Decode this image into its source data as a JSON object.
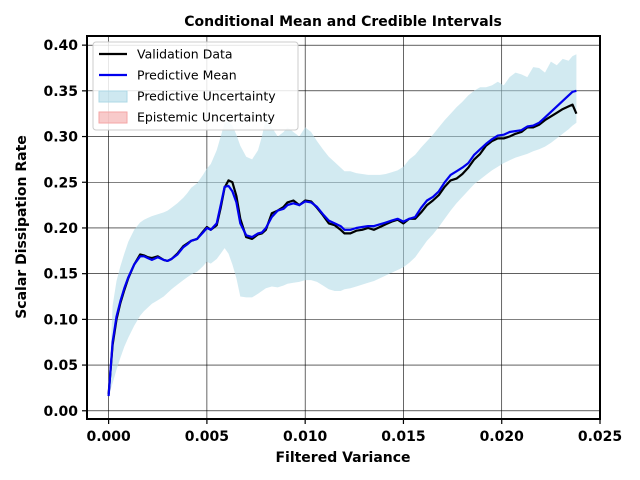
{
  "chart_data": {
    "type": "line",
    "title": "Conditional Mean and Credible Intervals",
    "xlabel": "Filtered Variance",
    "ylabel": "Scalar Dissipation Rate",
    "xlim": [
      -0.0011,
      0.025
    ],
    "ylim": [
      -0.009,
      0.41
    ],
    "xticks": [
      "0.000",
      "0.005",
      "0.010",
      "0.015",
      "0.020",
      "0.025"
    ],
    "yticks": [
      "0.00",
      "0.05",
      "0.10",
      "0.15",
      "0.20",
      "0.25",
      "0.30",
      "0.35",
      "0.40"
    ],
    "xtick_values": [
      0.0,
      0.005,
      0.01,
      0.015,
      0.02,
      0.025
    ],
    "ytick_values": [
      0.0,
      0.05,
      0.1,
      0.15,
      0.2,
      0.25,
      0.3,
      0.35,
      0.4
    ],
    "grid": true,
    "legend_position": "top-left",
    "x": [
      0.0,
      0.0002,
      0.0004,
      0.0006,
      0.0008,
      0.001,
      0.0013,
      0.0016,
      0.0018,
      0.002,
      0.0022,
      0.0025,
      0.0028,
      0.003,
      0.0032,
      0.0035,
      0.0038,
      0.004,
      0.0042,
      0.0045,
      0.0048,
      0.005,
      0.0052,
      0.0055,
      0.0057,
      0.0059,
      0.0061,
      0.0063,
      0.0065,
      0.0067,
      0.007,
      0.0073,
      0.0076,
      0.0078,
      0.008,
      0.0083,
      0.0086,
      0.0089,
      0.0091,
      0.0094,
      0.0097,
      0.01,
      0.0103,
      0.0106,
      0.0109,
      0.0112,
      0.0115,
      0.0118,
      0.012,
      0.0123,
      0.0126,
      0.0129,
      0.0132,
      0.0135,
      0.0138,
      0.0141,
      0.0144,
      0.0147,
      0.015,
      0.0153,
      0.0156,
      0.0159,
      0.0162,
      0.0165,
      0.0168,
      0.0171,
      0.0174,
      0.0177,
      0.018,
      0.0183,
      0.0186,
      0.0189,
      0.0192,
      0.0195,
      0.0198,
      0.0201,
      0.0204,
      0.0207,
      0.021,
      0.0213,
      0.0216,
      0.0219,
      0.0222,
      0.0225,
      0.0228,
      0.0231,
      0.0234,
      0.0236,
      0.0238
    ],
    "series": [
      {
        "name": "Validation Data",
        "color": "#000000",
        "values": [
          0.018,
          0.072,
          0.1,
          0.118,
          0.132,
          0.145,
          0.16,
          0.171,
          0.17,
          0.168,
          0.167,
          0.169,
          0.165,
          0.164,
          0.166,
          0.172,
          0.18,
          0.183,
          0.186,
          0.188,
          0.196,
          0.201,
          0.198,
          0.203,
          0.222,
          0.244,
          0.252,
          0.25,
          0.235,
          0.21,
          0.19,
          0.188,
          0.193,
          0.194,
          0.198,
          0.216,
          0.219,
          0.223,
          0.228,
          0.23,
          0.225,
          0.23,
          0.229,
          0.222,
          0.214,
          0.205,
          0.203,
          0.198,
          0.194,
          0.194,
          0.197,
          0.198,
          0.2,
          0.198,
          0.201,
          0.204,
          0.207,
          0.209,
          0.205,
          0.21,
          0.21,
          0.217,
          0.225,
          0.23,
          0.236,
          0.245,
          0.252,
          0.254,
          0.259,
          0.266,
          0.275,
          0.281,
          0.29,
          0.295,
          0.298,
          0.298,
          0.3,
          0.303,
          0.305,
          0.31,
          0.31,
          0.313,
          0.318,
          0.322,
          0.326,
          0.33,
          0.333,
          0.335,
          0.325
        ]
      },
      {
        "name": "Predictive Mean",
        "color": "#0000ee",
        "values": [
          0.016,
          0.075,
          0.103,
          0.12,
          0.134,
          0.146,
          0.16,
          0.169,
          0.169,
          0.167,
          0.165,
          0.168,
          0.165,
          0.164,
          0.166,
          0.171,
          0.179,
          0.182,
          0.186,
          0.188,
          0.195,
          0.2,
          0.198,
          0.205,
          0.225,
          0.245,
          0.246,
          0.24,
          0.228,
          0.205,
          0.192,
          0.19,
          0.194,
          0.195,
          0.2,
          0.212,
          0.219,
          0.221,
          0.225,
          0.227,
          0.225,
          0.229,
          0.228,
          0.223,
          0.215,
          0.208,
          0.205,
          0.202,
          0.198,
          0.198,
          0.2,
          0.201,
          0.202,
          0.202,
          0.204,
          0.206,
          0.208,
          0.21,
          0.207,
          0.21,
          0.212,
          0.222,
          0.23,
          0.234,
          0.24,
          0.25,
          0.258,
          0.262,
          0.266,
          0.271,
          0.28,
          0.286,
          0.292,
          0.297,
          0.301,
          0.302,
          0.305,
          0.306,
          0.307,
          0.311,
          0.312,
          0.315,
          0.321,
          0.327,
          0.333,
          0.339,
          0.345,
          0.349,
          0.35
        ]
      }
    ],
    "bands": [
      {
        "name": "Predictive Uncertainty",
        "color": "#add8e6",
        "lower": [
          0.016,
          0.03,
          0.045,
          0.058,
          0.07,
          0.08,
          0.093,
          0.104,
          0.109,
          0.113,
          0.117,
          0.121,
          0.125,
          0.129,
          0.133,
          0.138,
          0.143,
          0.146,
          0.149,
          0.152,
          0.158,
          0.163,
          0.161,
          0.166,
          0.172,
          0.178,
          0.172,
          0.16,
          0.145,
          0.125,
          0.124,
          0.124,
          0.128,
          0.131,
          0.134,
          0.136,
          0.135,
          0.137,
          0.139,
          0.14,
          0.141,
          0.143,
          0.143,
          0.141,
          0.137,
          0.133,
          0.131,
          0.131,
          0.133,
          0.134,
          0.136,
          0.138,
          0.14,
          0.142,
          0.145,
          0.148,
          0.151,
          0.154,
          0.157,
          0.162,
          0.168,
          0.177,
          0.186,
          0.193,
          0.201,
          0.21,
          0.219,
          0.227,
          0.234,
          0.241,
          0.248,
          0.253,
          0.258,
          0.263,
          0.267,
          0.271,
          0.274,
          0.277,
          0.279,
          0.281,
          0.284,
          0.286,
          0.289,
          0.293,
          0.298,
          0.303,
          0.308,
          0.312,
          0.315
        ],
        "upper": [
          0.016,
          0.115,
          0.142,
          0.158,
          0.172,
          0.185,
          0.198,
          0.206,
          0.209,
          0.211,
          0.213,
          0.215,
          0.217,
          0.219,
          0.222,
          0.227,
          0.233,
          0.238,
          0.244,
          0.249,
          0.258,
          0.265,
          0.27,
          0.285,
          0.3,
          0.315,
          0.316,
          0.312,
          0.302,
          0.29,
          0.278,
          0.275,
          0.285,
          0.3,
          0.32,
          0.31,
          0.3,
          0.305,
          0.31,
          0.305,
          0.3,
          0.31,
          0.305,
          0.295,
          0.286,
          0.278,
          0.272,
          0.266,
          0.262,
          0.262,
          0.26,
          0.259,
          0.258,
          0.258,
          0.258,
          0.259,
          0.261,
          0.263,
          0.267,
          0.275,
          0.28,
          0.288,
          0.295,
          0.302,
          0.31,
          0.318,
          0.325,
          0.332,
          0.338,
          0.345,
          0.35,
          0.354,
          0.354,
          0.356,
          0.36,
          0.356,
          0.365,
          0.37,
          0.368,
          0.365,
          0.376,
          0.375,
          0.37,
          0.382,
          0.378,
          0.385,
          0.383,
          0.388,
          0.39
        ]
      }
    ],
    "legend": [
      {
        "label": "Validation Data",
        "kind": "line",
        "color": "#000000"
      },
      {
        "label": "Predictive Mean",
        "kind": "line",
        "color": "#0000ee"
      },
      {
        "label": "Predictive Uncertainty",
        "kind": "patch",
        "color": "#add8e6"
      },
      {
        "label": "Epistemic Uncertainty",
        "kind": "patch",
        "color": "#f4a6a6"
      }
    ]
  }
}
